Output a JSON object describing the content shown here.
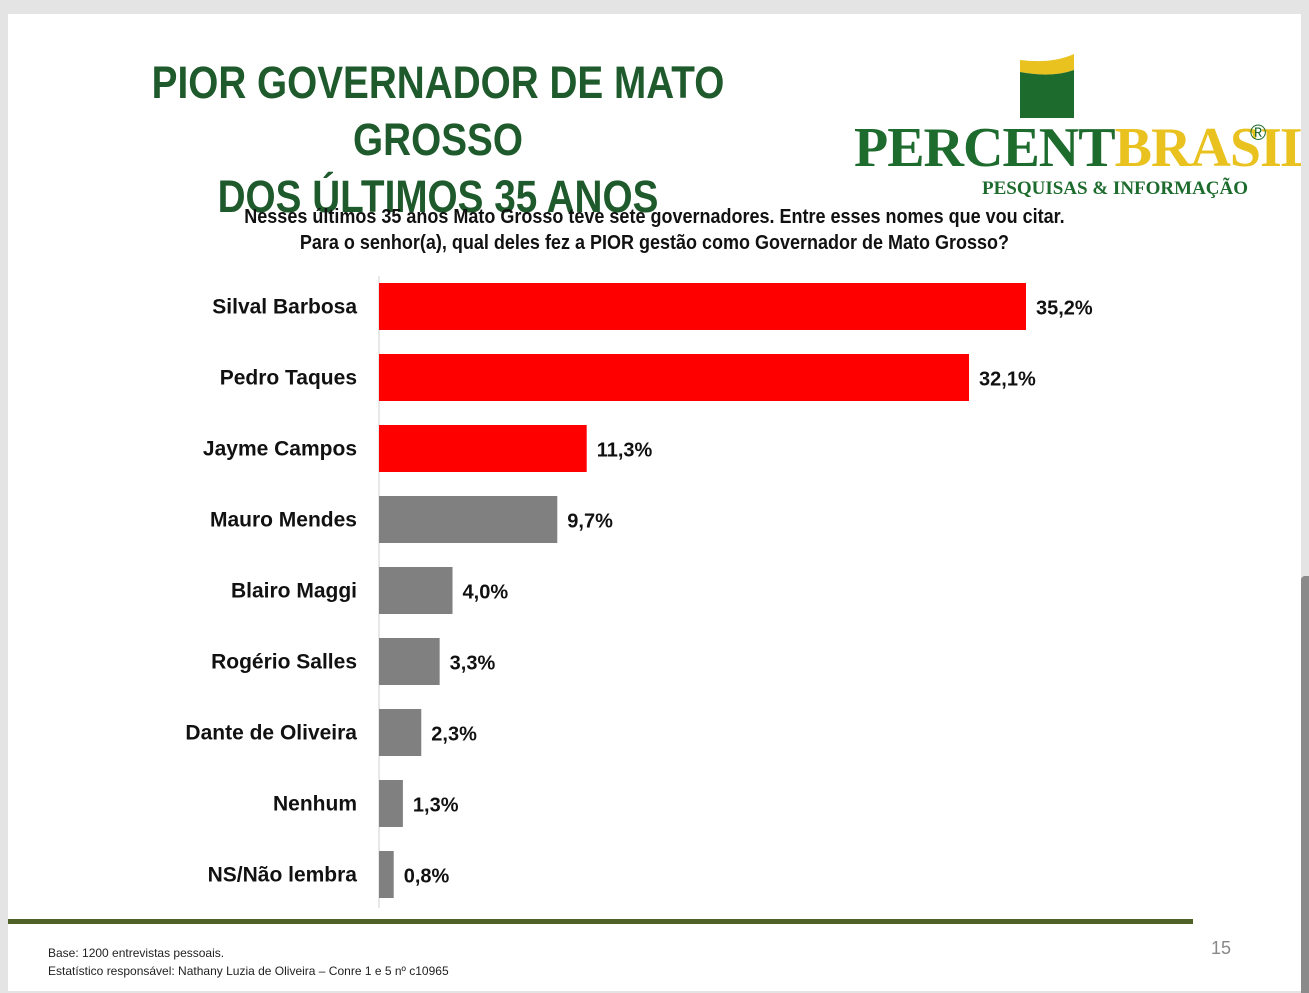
{
  "title": {
    "line1": "PIOR GOVERNADOR DE MATO GROSSO",
    "line2": "DOS ÚLTIMOS 35 ANOS"
  },
  "logo": {
    "word_part1": "PERCENT",
    "word_part2": "BRASIL",
    "registered": "®",
    "subtitle": "PESQUISAS & INFORMAÇÃO"
  },
  "question": {
    "line1": "Nesses últimos 35 anos Mato Grosso teve sete governadores. Entre esses nomes que vou citar.",
    "line2": "Para o senhor(a), qual deles fez a PIOR gestão como Governador de Mato Grosso?"
  },
  "chart_data": {
    "type": "bar",
    "orientation": "horizontal",
    "categories": [
      "Silval Barbosa",
      "Pedro Taques",
      "Jayme Campos",
      "Mauro Mendes",
      "Blairo Maggi",
      "Rogério Salles",
      "Dante de Oliveira",
      "Nenhum",
      "NS/Não lembra"
    ],
    "values": [
      35.2,
      32.1,
      11.3,
      9.7,
      4.0,
      3.3,
      2.3,
      1.3,
      0.8
    ],
    "value_labels": [
      "35,2%",
      "32,1%",
      "11,3%",
      "9,7%",
      "4,0%",
      "3,3%",
      "2,3%",
      "1,3%",
      "0,8%"
    ],
    "bar_colors": [
      "#ff0000",
      "#ff0000",
      "#ff0000",
      "#808080",
      "#808080",
      "#808080",
      "#808080",
      "#808080",
      "#808080"
    ],
    "xlim": [
      0,
      35.2
    ],
    "grid": false,
    "legend": "none"
  },
  "footer": {
    "base": "Base: 1200 entrevistas pessoais.",
    "statistician": "Estatístico responsável: Nathany Luzia de Oliveira – Conre 1 e 5 nº c10965",
    "page": "15"
  },
  "colors": {
    "title_green": "#1e5a2b",
    "logo_green": "#1e6b2e",
    "logo_yellow": "#e9c21f",
    "footer_line": "#4f6228"
  }
}
